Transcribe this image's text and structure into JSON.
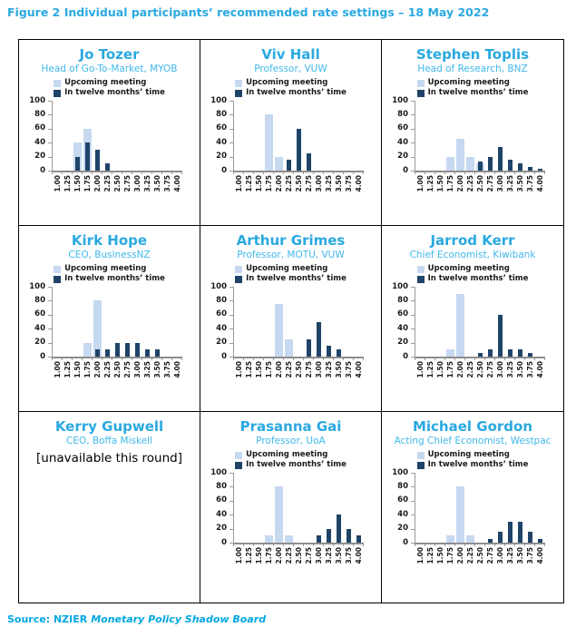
{
  "title": "Figure 2 Individual participants’ recommended rate settings – 18 May 2022",
  "source": {
    "prefix": "Source: NZIER",
    "name": "Monetary Policy Shadow Board"
  },
  "colors": {
    "accent": "#2AA9E0",
    "accent_light": "#41B8EA",
    "upcoming": "#C6D9F1",
    "twelve_months": "#1F4468",
    "axis": "#9B9B9B",
    "grid_border": "#000000",
    "source": "#00A7E3"
  },
  "legend": {
    "upcoming": "Upcoming meeting",
    "twelve_months": "In twelve months’ time"
  },
  "axis": {
    "x_categories": [
      "1.00",
      "1.25",
      "1.50",
      "1.75",
      "2.00",
      "2.25",
      "2.50",
      "2.75",
      "3.00",
      "3.25",
      "3.50",
      "3.75",
      "4.00"
    ],
    "y_ticks": [
      100,
      80,
      60,
      40,
      20,
      0
    ],
    "ylim": [
      0,
      100
    ],
    "grid": false,
    "legend_position": "top"
  },
  "chart_data": [
    {
      "type": "bar",
      "title": "Jo Tozer",
      "subtitle": "Head of Go-To-Market, MYOB",
      "categories": [
        "1.00",
        "1.25",
        "1.50",
        "1.75",
        "2.00",
        "2.25",
        "2.50",
        "2.75",
        "3.00",
        "3.25",
        "3.50",
        "3.75",
        "4.00"
      ],
      "ylim": [
        0,
        100
      ],
      "series": [
        {
          "name": "Upcoming meeting",
          "values": [
            0,
            0,
            40,
            60,
            0,
            0,
            0,
            0,
            0,
            0,
            0,
            0,
            0
          ]
        },
        {
          "name": "In twelve months’ time",
          "values": [
            0,
            0,
            20,
            40,
            30,
            10,
            0,
            0,
            0,
            0,
            0,
            0,
            0
          ]
        }
      ]
    },
    {
      "type": "bar",
      "title": "Viv Hall",
      "subtitle": "Professor, VUW",
      "categories": [
        "1.00",
        "1.25",
        "1.50",
        "1.75",
        "2.00",
        "2.25",
        "2.50",
        "2.75",
        "3.00",
        "3.25",
        "3.50",
        "3.75",
        "4.00"
      ],
      "ylim": [
        0,
        100
      ],
      "series": [
        {
          "name": "Upcoming meeting",
          "values": [
            0,
            0,
            0,
            80,
            20,
            0,
            0,
            0,
            0,
            0,
            0,
            0,
            0
          ]
        },
        {
          "name": "In twelve months’ time",
          "values": [
            0,
            0,
            0,
            0,
            0,
            15,
            60,
            25,
            0,
            0,
            0,
            0,
            0
          ]
        }
      ]
    },
    {
      "type": "bar",
      "title": "Stephen Toplis",
      "subtitle": "Head of Research, BNZ",
      "categories": [
        "1.00",
        "1.25",
        "1.50",
        "1.75",
        "2.00",
        "2.25",
        "2.50",
        "2.75",
        "3.00",
        "3.25",
        "3.50",
        "3.75",
        "4.00"
      ],
      "ylim": [
        0,
        100
      ],
      "series": [
        {
          "name": "Upcoming meeting",
          "values": [
            0,
            0,
            0,
            20,
            45,
            20,
            10,
            0,
            0,
            0,
            0,
            0,
            0
          ]
        },
        {
          "name": "In twelve months’ time",
          "values": [
            0,
            0,
            0,
            0,
            0,
            0,
            13,
            20,
            34,
            15,
            10,
            5,
            3
          ]
        }
      ]
    },
    {
      "type": "bar",
      "title": "Kirk Hope",
      "subtitle": "CEO, BusinessNZ",
      "categories": [
        "1.00",
        "1.25",
        "1.50",
        "1.75",
        "2.00",
        "2.25",
        "2.50",
        "2.75",
        "3.00",
        "3.25",
        "3.50",
        "3.75",
        "4.00"
      ],
      "ylim": [
        0,
        100
      ],
      "series": [
        {
          "name": "Upcoming meeting",
          "values": [
            0,
            0,
            0,
            20,
            80,
            0,
            0,
            0,
            0,
            0,
            0,
            0,
            0
          ]
        },
        {
          "name": "In twelve months’ time",
          "values": [
            0,
            0,
            0,
            0,
            10,
            10,
            20,
            20,
            20,
            10,
            10,
            0,
            0
          ]
        }
      ]
    },
    {
      "type": "bar",
      "title": "Arthur Grimes",
      "subtitle": "Professor, MOTU, VUW",
      "categories": [
        "1.00",
        "1.25",
        "1.50",
        "1.75",
        "2.00",
        "2.25",
        "2.50",
        "2.75",
        "3.00",
        "3.25",
        "3.50",
        "3.75",
        "4.00"
      ],
      "ylim": [
        0,
        100
      ],
      "series": [
        {
          "name": "Upcoming meeting",
          "values": [
            0,
            0,
            0,
            0,
            75,
            25,
            0,
            0,
            0,
            0,
            0,
            0,
            0
          ]
        },
        {
          "name": "In twelve months’ time",
          "values": [
            0,
            0,
            0,
            0,
            0,
            0,
            0,
            25,
            50,
            15,
            10,
            0,
            0
          ]
        }
      ]
    },
    {
      "type": "bar",
      "title": "Jarrod Kerr",
      "subtitle": "Chief Economist, Kiwibank",
      "categories": [
        "1.00",
        "1.25",
        "1.50",
        "1.75",
        "2.00",
        "2.25",
        "2.50",
        "2.75",
        "3.00",
        "3.25",
        "3.50",
        "3.75",
        "4.00"
      ],
      "ylim": [
        0,
        100
      ],
      "series": [
        {
          "name": "Upcoming meeting",
          "values": [
            0,
            0,
            0,
            10,
            90,
            0,
            0,
            0,
            0,
            0,
            0,
            0,
            0
          ]
        },
        {
          "name": "In twelve months’ time",
          "values": [
            0,
            0,
            0,
            0,
            0,
            0,
            5,
            10,
            60,
            10,
            10,
            5,
            0
          ]
        }
      ]
    },
    {
      "type": "bar",
      "title": "Kerry Gupwell",
      "subtitle": "CEO, Boffa Miskell",
      "unavailable": true,
      "note": "[unavailable this round]"
    },
    {
      "type": "bar",
      "title": "Prasanna Gai",
      "subtitle": "Professor, UoA",
      "categories": [
        "1.00",
        "1.25",
        "1.50",
        "1.75",
        "2.00",
        "2.25",
        "2.50",
        "2.75",
        "3.00",
        "3.25",
        "3.50",
        "3.75",
        "4.00"
      ],
      "ylim": [
        0,
        100
      ],
      "series": [
        {
          "name": "Upcoming meeting",
          "values": [
            0,
            0,
            0,
            10,
            80,
            10,
            0,
            0,
            0,
            0,
            0,
            0,
            0
          ]
        },
        {
          "name": "In twelve months’ time",
          "values": [
            0,
            0,
            0,
            0,
            0,
            0,
            0,
            0,
            10,
            20,
            40,
            20,
            10
          ]
        }
      ]
    },
    {
      "type": "bar",
      "title": "Michael Gordon",
      "subtitle": "Acting Chief Economist, Westpac",
      "categories": [
        "1.00",
        "1.25",
        "1.50",
        "1.75",
        "2.00",
        "2.25",
        "2.50",
        "2.75",
        "3.00",
        "3.25",
        "3.50",
        "3.75",
        "4.00"
      ],
      "ylim": [
        0,
        100
      ],
      "series": [
        {
          "name": "Upcoming meeting",
          "values": [
            0,
            0,
            0,
            10,
            80,
            10,
            0,
            0,
            0,
            0,
            0,
            0,
            0
          ]
        },
        {
          "name": "In twelve months’ time",
          "values": [
            0,
            0,
            0,
            0,
            0,
            0,
            0,
            5,
            15,
            30,
            30,
            15,
            5
          ]
        }
      ]
    }
  ]
}
